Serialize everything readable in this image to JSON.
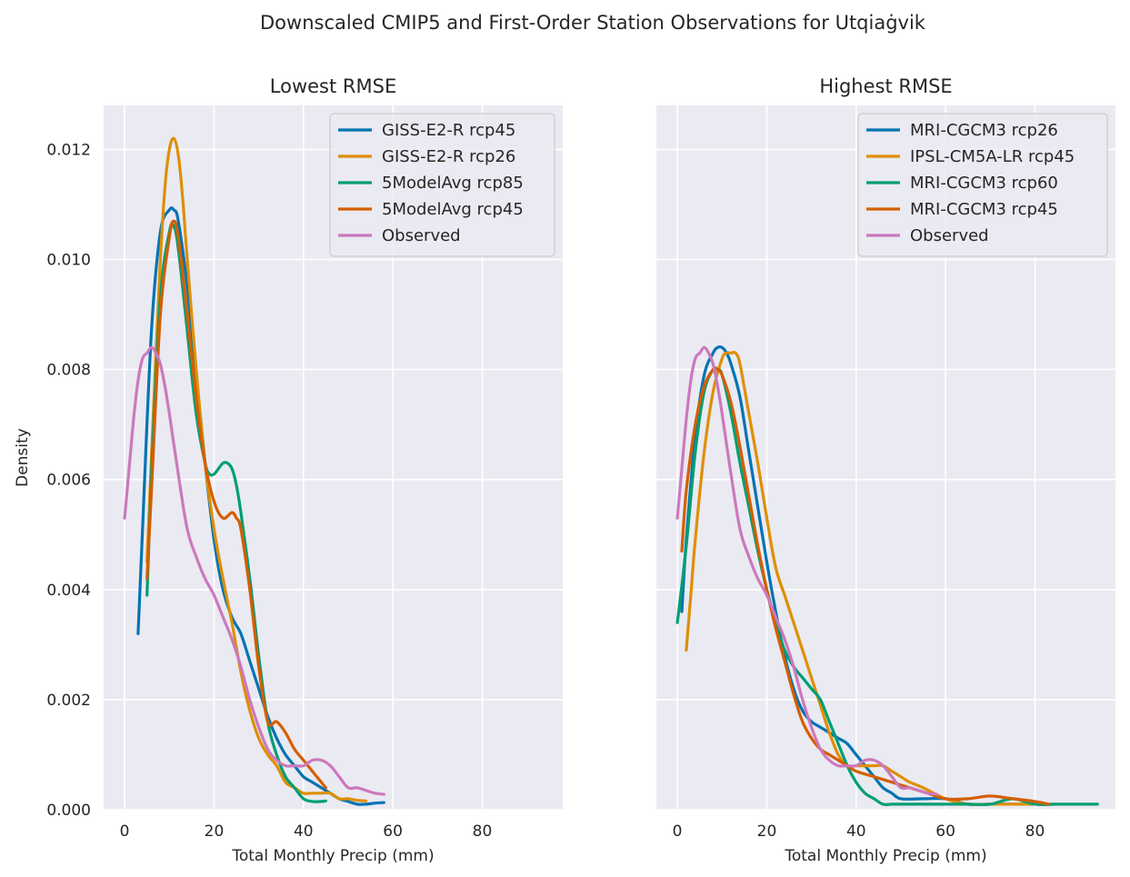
{
  "figure": {
    "suptitle": "Downscaled CMIP5 and First-Order Station Observations for Utqiaġvik"
  },
  "chart_data": [
    {
      "type": "line",
      "title": "Lowest RMSE",
      "xlabel": "Total Monthly Precip (mm)",
      "ylabel": "Density",
      "xlim": [
        -4.7,
        98
      ],
      "ylim": [
        0,
        0.0128
      ],
      "xticks": [
        "0",
        "20",
        "40",
        "60",
        "80"
      ],
      "yticks": [
        "0.000",
        "0.002",
        "0.004",
        "0.006",
        "0.008",
        "0.010",
        "0.012"
      ],
      "grid": true,
      "legend": "top-right",
      "series": [
        {
          "name": "GISS-E2-R rcp45",
          "color": "#0173b2",
          "x": [
            3,
            4,
            6,
            8,
            10,
            11,
            12,
            14,
            16,
            18,
            20,
            22,
            24,
            26,
            28,
            30,
            32,
            34,
            36,
            38,
            40,
            42,
            44,
            46,
            48,
            50,
            52,
            54,
            56,
            58
          ],
          "y": [
            0.0032,
            0.0051,
            0.0087,
            0.0105,
            0.0109,
            0.0109,
            0.0107,
            0.0095,
            0.0079,
            0.0063,
            0.0049,
            0.004,
            0.0035,
            0.0032,
            0.0027,
            0.0022,
            0.0017,
            0.0013,
            0.001,
            0.0008,
            0.0006,
            0.0005,
            0.0004,
            0.0003,
            0.0002,
            0.00015,
            0.0001,
            0.0001,
            0.00012,
            0.00013
          ]
        },
        {
          "name": "GISS-E2-R rcp26",
          "color": "#de8f05",
          "x": [
            5,
            6,
            7,
            8,
            9,
            10,
            11,
            12,
            13,
            14,
            16,
            18,
            20,
            22,
            24,
            26,
            28,
            30,
            32,
            34,
            36,
            38,
            40,
            42,
            44,
            46,
            48,
            50,
            52,
            54
          ],
          "y": [
            0.0045,
            0.0064,
            0.0083,
            0.01,
            0.0113,
            0.012,
            0.0122,
            0.0119,
            0.0111,
            0.01,
            0.008,
            0.0063,
            0.0051,
            0.0042,
            0.0034,
            0.0025,
            0.0018,
            0.0013,
            0.001,
            0.0008,
            0.0005,
            0.0004,
            0.0003,
            0.0003,
            0.0003,
            0.0003,
            0.0002,
            0.0002,
            0.00017,
            0.00016
          ]
        },
        {
          "name": "5ModelAvg rcp85",
          "color": "#029e73",
          "x": [
            5,
            6,
            8,
            10,
            11,
            12,
            14,
            16,
            18,
            19,
            20,
            21,
            22,
            23,
            24,
            25,
            26,
            28,
            30,
            32,
            34,
            36,
            38,
            40,
            42,
            44,
            45
          ],
          "y": [
            0.0039,
            0.0061,
            0.0093,
            0.0105,
            0.0106,
            0.0102,
            0.0087,
            0.0072,
            0.0063,
            0.0061,
            0.0061,
            0.0062,
            0.0063,
            0.0063,
            0.0062,
            0.0059,
            0.0054,
            0.0042,
            0.0028,
            0.0016,
            0.001,
            0.0006,
            0.0004,
            0.0002,
            0.00015,
            0.00015,
            0.00016
          ]
        },
        {
          "name": "5ModelAvg rcp45",
          "color": "#d55e00",
          "x": [
            5,
            6,
            8,
            10,
            11,
            12,
            14,
            16,
            18,
            20,
            22,
            24,
            25,
            26,
            28,
            30,
            32,
            34,
            36,
            38,
            40,
            42,
            44,
            45
          ],
          "y": [
            0.0042,
            0.0058,
            0.009,
            0.0104,
            0.0107,
            0.0104,
            0.009,
            0.0075,
            0.0063,
            0.0056,
            0.0053,
            0.0054,
            0.0053,
            0.0051,
            0.004,
            0.0026,
            0.0016,
            0.0016,
            0.0014,
            0.0011,
            0.0009,
            0.0007,
            0.0005,
            0.0004
          ]
        },
        {
          "name": "Observed",
          "color": "#cc78bc",
          "x": [
            0,
            1,
            2,
            3,
            4,
            5,
            6,
            7,
            8,
            9,
            10,
            12,
            14,
            16,
            18,
            20,
            22,
            24,
            26,
            28,
            30,
            32,
            34,
            36,
            38,
            40,
            42,
            44,
            46,
            48,
            50,
            52,
            54,
            56,
            58
          ],
          "y": [
            0.0053,
            0.0062,
            0.0071,
            0.0078,
            0.0082,
            0.0083,
            0.0084,
            0.0083,
            0.0081,
            0.0077,
            0.0072,
            0.0061,
            0.0051,
            0.0046,
            0.0042,
            0.0039,
            0.0035,
            0.0031,
            0.0026,
            0.002,
            0.0015,
            0.0011,
            0.0009,
            0.0008,
            0.0008,
            0.0008,
            0.0009,
            0.0009,
            0.0008,
            0.0006,
            0.0004,
            0.0004,
            0.00035,
            0.0003,
            0.00028
          ]
        }
      ]
    },
    {
      "type": "line",
      "title": "Highest RMSE",
      "xlabel": "Total Monthly Precip (mm)",
      "ylabel": "",
      "xlim": [
        -4.7,
        98
      ],
      "ylim": [
        0,
        0.0128
      ],
      "xticks": [
        "0",
        "20",
        "40",
        "60",
        "80"
      ],
      "yticks": [],
      "grid": true,
      "legend": "top-right",
      "series": [
        {
          "name": "MRI-CGCM3 rcp26",
          "color": "#0173b2",
          "x": [
            1,
            2,
            4,
            6,
            8,
            9,
            10,
            11,
            12,
            14,
            16,
            18,
            20,
            22,
            24,
            26,
            28,
            30,
            32,
            34,
            36,
            38,
            40,
            42,
            44,
            46,
            48,
            50,
            55,
            60,
            65,
            70,
            75,
            80
          ],
          "y": [
            0.0036,
            0.0049,
            0.0068,
            0.0079,
            0.0083,
            0.0084,
            0.0084,
            0.0083,
            0.0081,
            0.0075,
            0.0065,
            0.0055,
            0.0045,
            0.0036,
            0.0028,
            0.0022,
            0.0018,
            0.0016,
            0.0015,
            0.0014,
            0.0013,
            0.0012,
            0.001,
            0.0008,
            0.0006,
            0.0004,
            0.0003,
            0.0002,
            0.0002,
            0.0002,
            0.0001,
            0.0001,
            0.0001,
            0.0001
          ]
        },
        {
          "name": "IPSL-CM5A-LR rcp45",
          "color": "#de8f05",
          "x": [
            2,
            3,
            4,
            6,
            8,
            10,
            11,
            12,
            13,
            14,
            16,
            18,
            20,
            22,
            24,
            26,
            28,
            30,
            32,
            34,
            36,
            38,
            40,
            42,
            44,
            46,
            48,
            50,
            52,
            55,
            60,
            65,
            70,
            75,
            80,
            85
          ],
          "y": [
            0.0029,
            0.0039,
            0.0049,
            0.0065,
            0.0076,
            0.0082,
            0.0083,
            0.0083,
            0.0083,
            0.0081,
            0.0072,
            0.0063,
            0.0053,
            0.0044,
            0.0039,
            0.0034,
            0.0029,
            0.0024,
            0.0019,
            0.0014,
            0.001,
            0.0008,
            0.0008,
            0.0008,
            0.0008,
            0.0008,
            0.0007,
            0.0006,
            0.0005,
            0.0004,
            0.0002,
            0.0001,
            0.0001,
            0.0001,
            0.0001,
            0.0001
          ]
        },
        {
          "name": "MRI-CGCM3 rcp60",
          "color": "#029e73",
          "x": [
            0,
            2,
            4,
            6,
            8,
            9,
            10,
            12,
            14,
            16,
            18,
            20,
            22,
            24,
            26,
            28,
            30,
            32,
            34,
            36,
            38,
            40,
            42,
            44,
            46,
            48,
            50,
            55,
            60,
            65,
            70,
            75,
            80,
            85,
            90,
            94
          ],
          "y": [
            0.0034,
            0.0048,
            0.0065,
            0.0076,
            0.008,
            0.008,
            0.0079,
            0.0072,
            0.0063,
            0.0055,
            0.0047,
            0.004,
            0.0034,
            0.0029,
            0.0026,
            0.0024,
            0.0022,
            0.002,
            0.0016,
            0.0012,
            0.0008,
            0.0005,
            0.0003,
            0.0002,
            0.0001,
            0.0001,
            0.0001,
            0.0001,
            0.0001,
            0.0001,
            0.0001,
            0.0002,
            0.0001,
            0.0001,
            0.0001,
            0.0001
          ]
        },
        {
          "name": "MRI-CGCM3 rcp45",
          "color": "#d55e00",
          "x": [
            1,
            2,
            4,
            6,
            8,
            9,
            10,
            12,
            14,
            16,
            18,
            20,
            22,
            24,
            26,
            28,
            30,
            32,
            34,
            36,
            38,
            40,
            44,
            48,
            52,
            56,
            60,
            65,
            70,
            75,
            80,
            83
          ],
          "y": [
            0.0047,
            0.0058,
            0.007,
            0.0077,
            0.008,
            0.008,
            0.0079,
            0.0074,
            0.0066,
            0.0057,
            0.0048,
            0.004,
            0.0033,
            0.0027,
            0.0021,
            0.0016,
            0.0013,
            0.0011,
            0.001,
            0.0009,
            0.0008,
            0.0007,
            0.0006,
            0.0005,
            0.0004,
            0.0003,
            0.0002,
            0.0002,
            0.00025,
            0.0002,
            0.00015,
            0.0001
          ]
        },
        {
          "name": "Observed",
          "color": "#cc78bc",
          "x": [
            0,
            1,
            2,
            3,
            4,
            5,
            6,
            7,
            8,
            9,
            10,
            12,
            14,
            16,
            18,
            20,
            22,
            24,
            26,
            28,
            30,
            32,
            34,
            36,
            38,
            40,
            42,
            44,
            46,
            48,
            50,
            52,
            54,
            56,
            58
          ],
          "y": [
            0.0053,
            0.0062,
            0.0071,
            0.0078,
            0.0082,
            0.0083,
            0.0084,
            0.0083,
            0.0081,
            0.0077,
            0.0072,
            0.0061,
            0.0051,
            0.0046,
            0.0042,
            0.0039,
            0.0035,
            0.0031,
            0.0026,
            0.002,
            0.0015,
            0.0011,
            0.0009,
            0.0008,
            0.0008,
            0.0008,
            0.0009,
            0.0009,
            0.0008,
            0.0006,
            0.0004,
            0.0004,
            0.00035,
            0.0003,
            0.00028
          ]
        }
      ]
    }
  ]
}
